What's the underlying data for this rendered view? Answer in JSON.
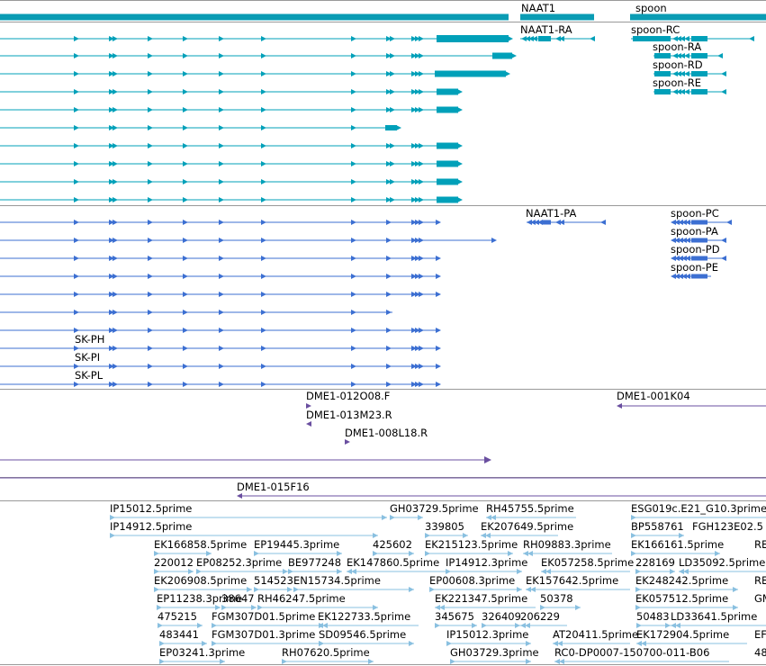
{
  "colors": {
    "gene": "#0a9cb4",
    "mrna": "#00a0b9",
    "protein": "#3c6fd2",
    "clone": "#6a4fa0",
    "est": "#8ac0e0"
  },
  "genes": [
    {
      "label": "NAAT1"
    },
    {
      "label": "spoon"
    }
  ],
  "transcripts": [
    {
      "label": "NAAT1-RA"
    },
    {
      "label": "spoon-RC"
    },
    {
      "label": "spoon-RA"
    },
    {
      "label": "spoon-RD"
    },
    {
      "label": "spoon-RE"
    }
  ],
  "proteins": [
    {
      "label": "NAAT1-PA"
    },
    {
      "label": "spoon-PC"
    },
    {
      "label": "spoon-PA"
    },
    {
      "label": "spoon-PD"
    },
    {
      "label": "spoon-PE"
    },
    {
      "label": "SK-PH"
    },
    {
      "label": "SK-PI"
    },
    {
      "label": "SK-PL"
    }
  ],
  "clones": [
    {
      "label": "DME1-012O08.F"
    },
    {
      "label": "DME1-013M23.R"
    },
    {
      "label": "DME1-008L18.R"
    },
    {
      "label": "DME1-001K04"
    },
    {
      "label": "DME1-015F16"
    }
  ],
  "ests": [
    "IP15012.5prime",
    "GH03729.5prime",
    "RH45755.5prime",
    "ESG019c.E21_G10.3prime",
    "IP14912.5prime",
    "339805",
    "EK207649.5prime",
    "BP558761",
    "FGH123E02.5",
    "EK166858.5prime",
    "EP19445.3prime",
    "425602",
    "EK215123.5prime",
    "RH09883.3prime",
    "EK166161.5prime",
    "RE",
    "220012",
    "EP08252.3prime",
    "BE977248",
    "EK147860.5prime",
    "IP14912.3prime",
    "EK057258.5prime",
    "228169",
    "LD35092.5prime",
    "EK206908.5prime",
    "514523",
    "EN15734.5prime",
    "EP00608.3prime",
    "EK157642.5prime",
    "EK248242.5prime",
    "RE",
    "EP11238.3prime",
    "38647",
    "RH46247.5prime",
    "EK221347.5prime",
    "50378",
    "EK057512.5prime",
    "GM",
    "475215",
    "FGM307D01.5prime",
    "EK122733.5prime",
    "345675",
    "326409",
    "206229",
    "50483",
    "LD33641.5prime",
    "483441",
    "FGM307D01.3prime",
    "SD09546.5prime",
    "IP15012.3prime",
    "AT20411.5prime",
    "EK172904.5prime",
    "EF",
    "EP03241.3prime",
    "RH07620.5prime",
    "GH03729.3prime",
    "RC0-DP0007-150700-011-B06",
    "48"
  ]
}
